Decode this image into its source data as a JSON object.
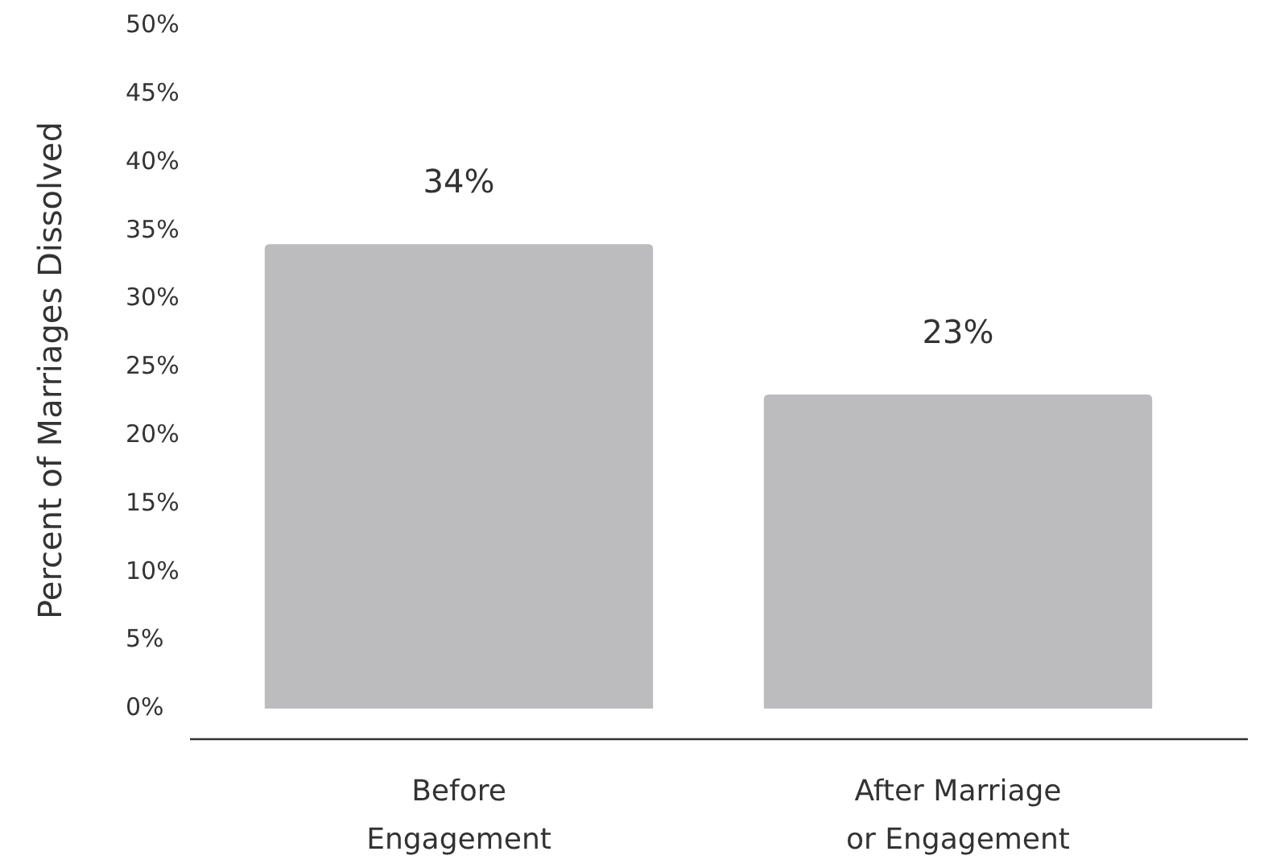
{
  "chart_data": {
    "type": "bar",
    "ylabel": "Percent of Marriages Dissolved",
    "categories": [
      "Before Engagement",
      "After Marriage or Engagement"
    ],
    "values": [
      34,
      23
    ],
    "color": "#bcbcbe",
    "data_labels": true,
    "value_labels": [
      "34%",
      "23%"
    ],
    "ylim": [
      0,
      50
    ],
    "yticks": [
      {
        "value": 0,
        "label": "0%"
      },
      {
        "value": 5,
        "label": "5%"
      },
      {
        "value": 10,
        "label": "10%"
      },
      {
        "value": 15,
        "label": "15%"
      },
      {
        "value": 20,
        "label": "20%"
      },
      {
        "value": 25,
        "label": "25%"
      },
      {
        "value": 30,
        "label": "30%"
      },
      {
        "value": 35,
        "label": "35%"
      },
      {
        "value": 40,
        "label": "40%"
      },
      {
        "value": 45,
        "label": "45%"
      },
      {
        "value": 50,
        "label": "50%"
      }
    ],
    "grid": false
  }
}
